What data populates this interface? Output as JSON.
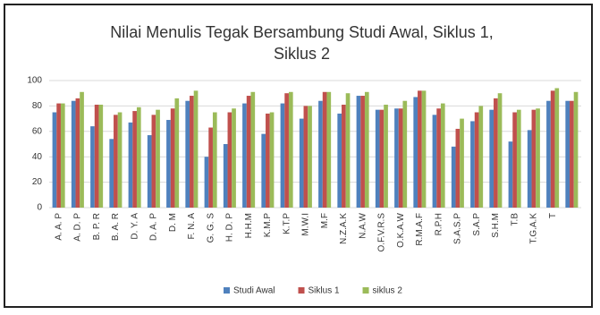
{
  "chart_data": {
    "type": "bar",
    "title": "Nilai Menulis Tegak Bersambung Studi Awal, Siklus 1, Siklus 2",
    "categories": [
      "A. A. P",
      "A. D. P",
      "B. P. R",
      "B. A. R",
      "D. Y. A",
      "D. A. P",
      "D. M",
      "F. N. A",
      "G. G. S",
      "H. D. P",
      "H.H.M",
      "K.M.P",
      "K.T.P",
      "M.W.I",
      "M.F",
      "N.Z.A.K",
      "N.A.W",
      "O.F.V.R.S",
      "O.K.A.W",
      "R.M.A.F",
      "R.P.H",
      "S.A.S.P",
      "S.A.P",
      "S.H.M",
      "T.B",
      "T.G.A.K",
      "T",
      null
    ],
    "series": [
      {
        "name": "Studi Awal",
        "color": "#4f81bd",
        "values": [
          75,
          84,
          64,
          54,
          67,
          57,
          69,
          84,
          40,
          50,
          82,
          58,
          82,
          70,
          84,
          74,
          88,
          77,
          78,
          87,
          73,
          48,
          68,
          77,
          52,
          61,
          84,
          84
        ]
      },
      {
        "name": "Siklus 1",
        "color": "#c0504d",
        "values": [
          82,
          86,
          81,
          73,
          76,
          73,
          78,
          88,
          63,
          75,
          88,
          74,
          90,
          80,
          91,
          81,
          88,
          77,
          78,
          92,
          78,
          62,
          75,
          86,
          75,
          77,
          92,
          84
        ]
      },
      {
        "name": "siklus 2",
        "color": "#9bbb59",
        "values": [
          82,
          91,
          81,
          75,
          79,
          77,
          86,
          92,
          75,
          78,
          91,
          75,
          91,
          80,
          91,
          90,
          91,
          81,
          84,
          92,
          82,
          70,
          80,
          90,
          77,
          78,
          94,
          91
        ]
      }
    ],
    "ylim": [
      0,
      100
    ],
    "yticks": [
      0,
      20,
      40,
      60,
      80,
      100
    ],
    "grid": true,
    "legend": "bottom"
  }
}
